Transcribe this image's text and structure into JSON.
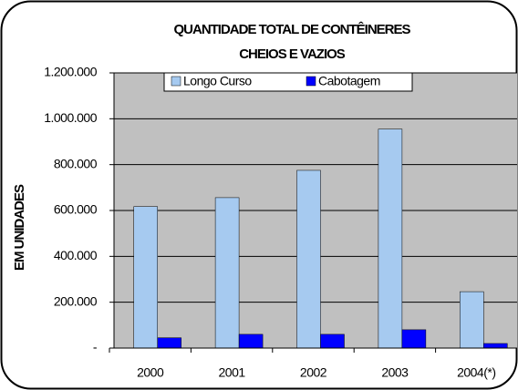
{
  "chart_data": {
    "type": "bar",
    "title": [
      "QUANTIDADE TOTAL DE CONTÊINERES",
      "CHEIOS E VAZIOS"
    ],
    "y_label": "EM UNIDADES",
    "categories": [
      "2000",
      "2001",
      "2002",
      "2003",
      "2004(*)"
    ],
    "series": [
      {
        "name": "Longo Curso",
        "color": "#a6caf0",
        "values": [
          617000,
          656000,
          775000,
          955000,
          246000
        ]
      },
      {
        "name": "Cabotagem",
        "color": "#0000ff",
        "values": [
          45000,
          60000,
          60000,
          80000,
          20000
        ]
      }
    ],
    "ylim": [
      0,
      1200000
    ],
    "yticks": [
      {
        "value": 0,
        "label": "-"
      },
      {
        "value": 200000,
        "label": "200.000"
      },
      {
        "value": 400000,
        "label": "400.000"
      },
      {
        "value": 600000,
        "label": "600.000"
      },
      {
        "value": 800000,
        "label": "800.000"
      },
      {
        "value": 1000000,
        "label": "1.000.000"
      },
      {
        "value": 1200000,
        "label": "1.200.000"
      }
    ],
    "grid": true,
    "plot_background": "#c0c0c0",
    "legend": "top"
  }
}
